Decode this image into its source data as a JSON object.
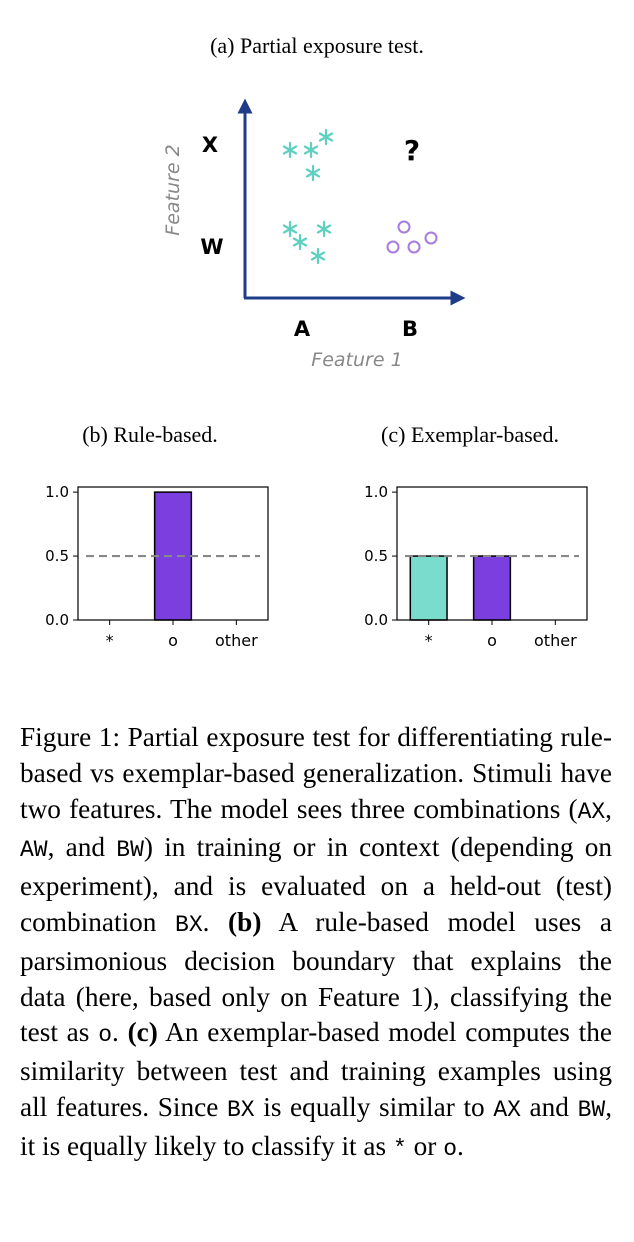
{
  "panel_a": {
    "title": "(a) Partial exposure test.",
    "y_label": "Feature 2",
    "x_label": "Feature 1",
    "row_labels": [
      "X",
      "W"
    ],
    "column_labels": [
      "A",
      "B"
    ],
    "query": "?"
  },
  "chart_data": [
    {
      "type": "bar",
      "title": "(b) Rule-based.",
      "categories": [
        "*",
        "o",
        "other"
      ],
      "values": [
        0,
        1,
        0
      ],
      "colors": [
        "#7adccd",
        "#7b3fe0",
        "#7b3fe0"
      ],
      "ylim": [
        0,
        1.04
      ],
      "yticks": [
        {
          "value": 0,
          "label": "0.0"
        },
        {
          "value": 0.5,
          "label": "0.5"
        },
        {
          "value": 1,
          "label": "1.0"
        }
      ],
      "reference_line": 0.5
    },
    {
      "type": "bar",
      "title": "(c) Exemplar-based.",
      "categories": [
        "*",
        "o",
        "other"
      ],
      "values": [
        0.5,
        0.5,
        0
      ],
      "colors": [
        "#7adccd",
        "#7b3fe0",
        "#7b3fe0"
      ],
      "ylim": [
        0,
        1.04
      ],
      "yticks": [
        {
          "value": 0,
          "label": "0.0"
        },
        {
          "value": 0.5,
          "label": "0.5"
        },
        {
          "value": 1,
          "label": "1.0"
        }
      ],
      "reference_line": 0.5
    }
  ],
  "caption": [
    "Figure 1: Partial exposure test for differentiating rule-based vs exemplar-based generalization. Stimuli have two features. The model sees three combinations (",
    "AX",
    ", ",
    "AW",
    ", and ",
    "BW",
    ") in training or in context (depending on experiment), and is evaluated on a held-out (test) combination ",
    "BX",
    ". ",
    "(b)",
    " A rule-based model uses a parsimonious decision boundary that explains the data (here, based only on Feature 1), classifying the test as ",
    "o",
    ". ",
    "(c)",
    " An exemplar-based model computes the similarity between test and training examples using all features. Since ",
    "BX",
    " is equally similar to ",
    "AX",
    " and ",
    "BW",
    ", it is equally likely to classify it as ",
    "*",
    " or ",
    "o",
    "."
  ]
}
